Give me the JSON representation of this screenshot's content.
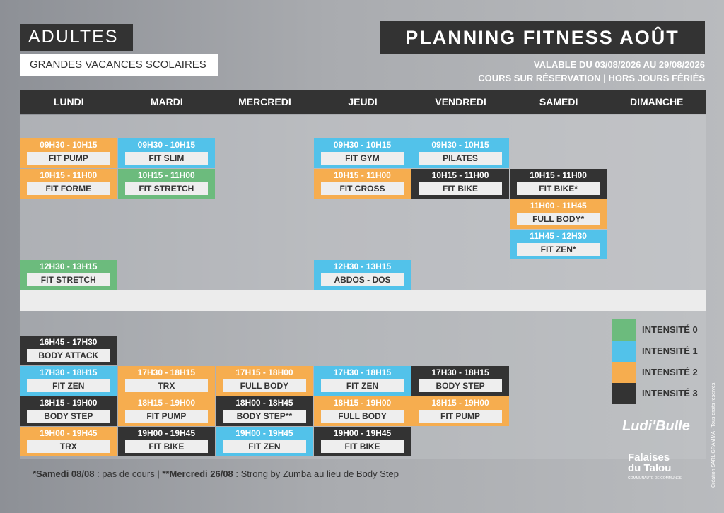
{
  "header": {
    "badge": "ADULTES",
    "subtitle": "GRANDES VACANCES SCOLAIRES",
    "title": "PLANNING FITNESS AOÛT",
    "validity": "VALABLE DU 03/08/2026 AU 29/08/2026",
    "note": "COURS SUR RÉSERVATION | HORS JOURS FÉRIÉS"
  },
  "days": [
    "LUNDI",
    "MARDI",
    "MERCREDI",
    "JEUDI",
    "VENDREDI",
    "SAMEDI",
    "DIMANCHE"
  ],
  "legend": [
    {
      "label": "INTENSITÉ 0",
      "color": "#6cbb7d"
    },
    {
      "label": "INTENSITÉ 1",
      "color": "#52c2ea"
    },
    {
      "label": "INTENSITÉ 2",
      "color": "#f6ad4f"
    },
    {
      "label": "INTENSITÉ 3",
      "color": "#333333"
    }
  ],
  "morning": [
    [
      {
        "time": "09H30 - 10H15",
        "name": "FIT PUMP",
        "intensity": 2
      },
      {
        "time": "09H30 - 10H15",
        "name": "FIT SLIM",
        "intensity": 1
      },
      null,
      {
        "time": "09H30 - 10H15",
        "name": "FIT GYM",
        "intensity": 1
      },
      {
        "time": "09H30 - 10H15",
        "name": "PILATES",
        "intensity": 1
      },
      null,
      null
    ],
    [
      {
        "time": "10H15 - 11H00",
        "name": "FIT FORME",
        "intensity": 2
      },
      {
        "time": "10H15 - 11H00",
        "name": "FIT STRETCH",
        "intensity": 0
      },
      null,
      {
        "time": "10H15 - 11H00",
        "name": "FIT CROSS",
        "intensity": 2
      },
      {
        "time": "10H15 - 11H00",
        "name": "FIT BIKE",
        "intensity": 3
      },
      {
        "time": "10H15 - 11H00",
        "name": "FIT BIKE*",
        "intensity": 3
      },
      null
    ],
    [
      null,
      null,
      null,
      null,
      null,
      {
        "time": "11H00 - 11H45",
        "name": "FULL BODY*",
        "intensity": 2
      },
      null
    ],
    [
      null,
      null,
      null,
      null,
      null,
      {
        "time": "11H45 - 12H30",
        "name": "FIT ZEN*",
        "intensity": 1
      },
      null
    ],
    [
      {
        "time": "12H30 - 13H15",
        "name": "FIT STRETCH",
        "intensity": 0
      },
      null,
      null,
      {
        "time": "12H30 - 13H15",
        "name": "ABDOS - DOS",
        "intensity": 1
      },
      null,
      null,
      null
    ]
  ],
  "afternoon": [
    [
      {
        "time": "16H45 - 17H30",
        "name": "BODY ATTACK",
        "intensity": 3
      },
      null,
      null,
      null,
      null,
      null,
      null
    ],
    [
      {
        "time": "17H30 - 18H15",
        "name": "FIT ZEN",
        "intensity": 1
      },
      {
        "time": "17H30 - 18H15",
        "name": "TRX",
        "intensity": 2
      },
      {
        "time": "17H15 - 18H00",
        "name": "FULL BODY",
        "intensity": 2
      },
      {
        "time": "17H30 - 18H15",
        "name": "FIT ZEN",
        "intensity": 1
      },
      {
        "time": "17H30 - 18H15",
        "name": "BODY STEP",
        "intensity": 3
      },
      null,
      null
    ],
    [
      {
        "time": "18H15 - 19H00",
        "name": "BODY STEP",
        "intensity": 3
      },
      {
        "time": "18H15 - 19H00",
        "name": "FIT PUMP",
        "intensity": 2
      },
      {
        "time": "18H00 - 18H45",
        "name": "BODY STEP**",
        "intensity": 3
      },
      {
        "time": "18H15 - 19H00",
        "name": "FULL BODY",
        "intensity": 2
      },
      {
        "time": "18H15 - 19H00",
        "name": "FIT PUMP",
        "intensity": 2
      },
      null,
      null
    ],
    [
      {
        "time": "19H00 - 19H45",
        "name": "TRX",
        "intensity": 2
      },
      {
        "time": "19H00 - 19H45",
        "name": "FIT BIKE",
        "intensity": 3
      },
      {
        "time": "19H00 - 19H45",
        "name": "FIT ZEN",
        "intensity": 1
      },
      {
        "time": "19H00 - 19H45",
        "name": "FIT BIKE",
        "intensity": 3
      },
      null,
      null,
      null
    ]
  ],
  "footnote": [
    {
      "text": "*Samedi 08/08",
      "bold": true
    },
    {
      "text": " : pas de cours | ",
      "bold": false
    },
    {
      "text": "**Mercredi 26/08",
      "bold": true
    },
    {
      "text": " : Strong by Zumba au lieu de Body Step",
      "bold": false
    }
  ],
  "logos": {
    "brand": "Ludi'Bulle",
    "community": "Falaises du Talou",
    "community_sub": "COMMUNAUTÉ DE COMMUNES",
    "credit": "Création SARL GRAMMA - Tous droits réservés."
  }
}
